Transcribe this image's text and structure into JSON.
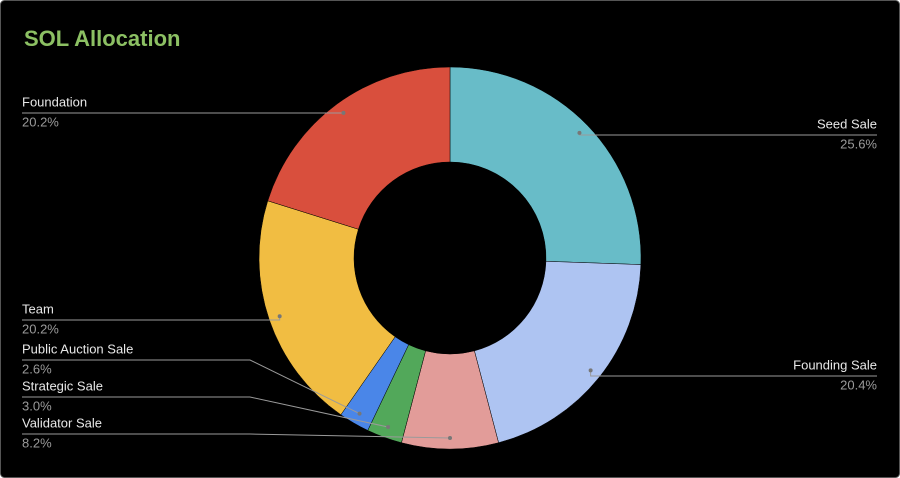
{
  "chart_data": {
    "type": "donut",
    "title": "SOL Allocation",
    "categories": [
      "Seed Sale",
      "Founding Sale",
      "Validator Sale",
      "Strategic Sale",
      "Public Auction Sale",
      "Team",
      "Foundation"
    ],
    "values": [
      25.6,
      20.4,
      8.2,
      3.0,
      2.6,
      20.2,
      20.2
    ],
    "value_labels": [
      "25.6%",
      "20.4%",
      "8.2%",
      "3.0%",
      "2.6%",
      "20.2%",
      "20.2%"
    ],
    "colors": [
      "#68bcc8",
      "#aec4f2",
      "#e29c99",
      "#52a85a",
      "#4a86e8",
      "#f1bd42",
      "#d94f3d"
    ]
  }
}
